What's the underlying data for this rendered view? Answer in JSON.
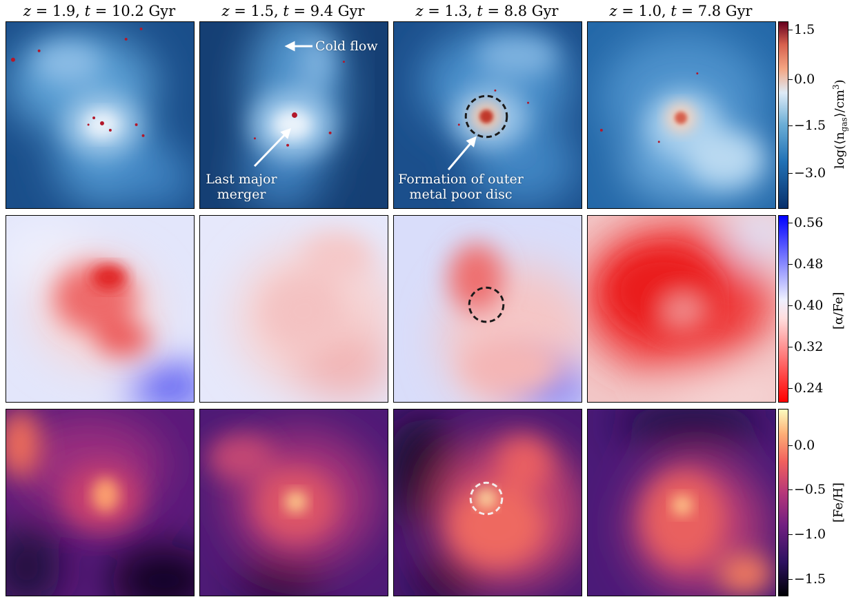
{
  "columns": [
    {
      "z": "1.9",
      "t": "10.2 Gyr"
    },
    {
      "z": "1.5",
      "t": "9.4 Gyr"
    },
    {
      "z": "1.3",
      "t": "8.8 Gyr"
    },
    {
      "z": "1.0",
      "t": "7.8 Gyr"
    }
  ],
  "symbols": {
    "z": "z",
    "t": "t",
    "eq": " = ",
    "sep": ", "
  },
  "rows": [
    {
      "quantity": "density",
      "label": "log(⟨n_gas⟩/cm³)",
      "label_main": "log(⟨n",
      "label_sub": "gas",
      "label_tail": "⟩/cm",
      "label_sup": "3",
      "label_end": ")",
      "ticks": [
        "1.5",
        "0.0",
        "−1.5",
        "−3.0"
      ],
      "tick_values": [
        1.5,
        0.0,
        -1.5,
        -3.0
      ],
      "range": [
        -3.7,
        1.7
      ],
      "colors": [
        "#f7f7f7",
        "#d1e5f0",
        "#92c5de",
        "#4393c3",
        "#2166ac",
        "#1a4a80"
      ]
    },
    {
      "quantity": "alpha_fe",
      "label": "[α/Fe]",
      "ticks": [
        "0.56",
        "0.48",
        "0.40",
        "0.32",
        "0.24"
      ],
      "tick_values": [
        0.56,
        0.48,
        0.4,
        0.32,
        0.24
      ],
      "range": [
        0.22,
        0.57
      ],
      "colors": [
        "#ff0000",
        "#ffffff",
        "#0000ff"
      ]
    },
    {
      "quantity": "fe_h",
      "label": "[Fe/H]",
      "ticks": [
        "0.0",
        "−0.5",
        "−1.0",
        "−1.5"
      ],
      "tick_values": [
        0.0,
        -0.5,
        -1.0,
        -1.5
      ],
      "range": [
        -1.75,
        0.35
      ],
      "colors": [
        "#000004",
        "#2d1160",
        "#721f81",
        "#b5367a",
        "#f1605d",
        "#feaf77",
        "#fcfdbf"
      ]
    }
  ],
  "annotations": {
    "cold_flow": "Cold flow",
    "last_major_merger_1": "Last major",
    "last_major_merger_2": "merger",
    "outer_disc_1": "Formation of outer",
    "outer_disc_2": "metal poor disc"
  }
}
